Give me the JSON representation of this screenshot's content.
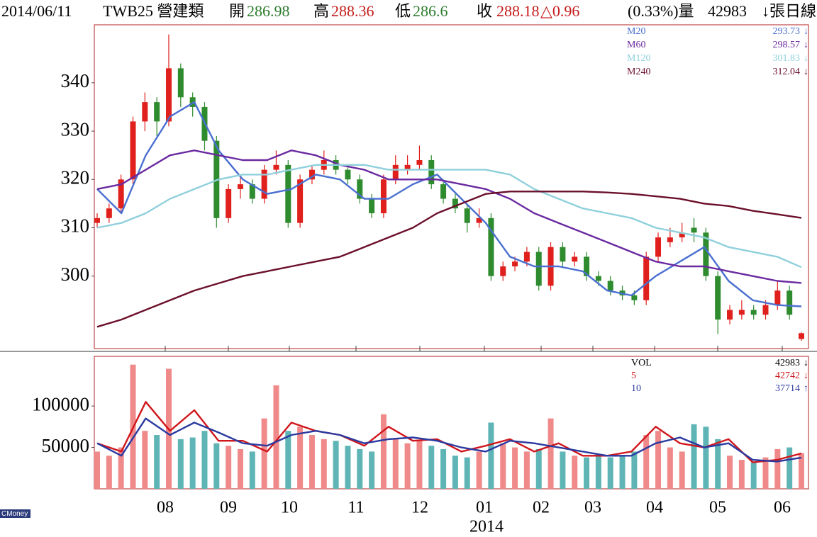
{
  "header": {
    "date": "2014/06/11",
    "code": "TWB25 營建類",
    "open_label": "開",
    "open": 286.98,
    "high_label": "高",
    "high": 288.36,
    "low_label": "低",
    "low": 286.6,
    "close_label": "收",
    "close": 288.18,
    "change": "△0.96",
    "pct": "(0.33%)量",
    "volume": 42983,
    "tail": "↓張日線"
  },
  "watermark": "CMoney",
  "chart_data": [
    {
      "type": "candlestick",
      "ylim": [
        285,
        352
      ],
      "yticks": [
        300,
        310,
        320,
        330,
        340
      ],
      "up_color": "#e0201c",
      "down_color": "#2e8b2e",
      "candles": [
        [
          311,
          313,
          310,
          312
        ],
        [
          312,
          315,
          311,
          314
        ],
        [
          314,
          321,
          313,
          320
        ],
        [
          320,
          333,
          319,
          332
        ],
        [
          332,
          338,
          330,
          336
        ],
        [
          336,
          337,
          329,
          332
        ],
        [
          332,
          350,
          331,
          343
        ],
        [
          343,
          344,
          335,
          337
        ],
        [
          337,
          338,
          333,
          335
        ],
        [
          335,
          336,
          326,
          328
        ],
        [
          328,
          329,
          310,
          312
        ],
        [
          312,
          319,
          311,
          318
        ],
        [
          318,
          321,
          316,
          319
        ],
        [
          319,
          320,
          315,
          316
        ],
        [
          316,
          323,
          315,
          322
        ],
        [
          322,
          326,
          321,
          323
        ],
        [
          323,
          324,
          310,
          311
        ],
        [
          311,
          321,
          310,
          320
        ],
        [
          320,
          323,
          319,
          322
        ],
        [
          322,
          326,
          321,
          324
        ],
        [
          324,
          325,
          321,
          322
        ],
        [
          322,
          323,
          319,
          320
        ],
        [
          320,
          321,
          315,
          316
        ],
        [
          316,
          317,
          312,
          313
        ],
        [
          313,
          321,
          312,
          320
        ],
        [
          320,
          325,
          319,
          323
        ],
        [
          322,
          325,
          321,
          323
        ],
        [
          323,
          327,
          322,
          324
        ],
        [
          324,
          325,
          318,
          319
        ],
        [
          319,
          320,
          315,
          316
        ],
        [
          316,
          317,
          313,
          314
        ],
        [
          314,
          315,
          309,
          311
        ],
        [
          311,
          314,
          310,
          312
        ],
        [
          312,
          313,
          299,
          300
        ],
        [
          300,
          303,
          299,
          302
        ],
        [
          302,
          304,
          301,
          303
        ],
        [
          303,
          306,
          302,
          305
        ],
        [
          305,
          306,
          297,
          298
        ],
        [
          298,
          307,
          297,
          306
        ],
        [
          306,
          307,
          302,
          303
        ],
        [
          303,
          305,
          302,
          304
        ],
        [
          304,
          305,
          299,
          300
        ],
        [
          300,
          301,
          298,
          299
        ],
        [
          299,
          300,
          296,
          297
        ],
        [
          297,
          298,
          295,
          296
        ],
        [
          296,
          297,
          294,
          295
        ],
        [
          295,
          305,
          294,
          304
        ],
        [
          304,
          309,
          303,
          308
        ],
        [
          307,
          310,
          306,
          308
        ],
        [
          308,
          311,
          307,
          309
        ],
        [
          310,
          312,
          307,
          309
        ],
        [
          309,
          310,
          299,
          300
        ],
        [
          300,
          301,
          288,
          291
        ],
        [
          291,
          294,
          290,
          293
        ],
        [
          292,
          295,
          291,
          293
        ],
        [
          293,
          294,
          291,
          292
        ],
        [
          292,
          295,
          291,
          294
        ],
        [
          294,
          299,
          293,
          297
        ],
        [
          297,
          298,
          291,
          292
        ],
        [
          286.98,
          288.36,
          286.6,
          288.18
        ]
      ],
      "series": [
        {
          "name": "M20",
          "color": "#4a6fd0",
          "trend": "↓",
          "values": [
            318,
            313,
            325,
            333,
            336,
            326,
            320,
            317,
            318,
            321,
            320,
            316,
            316,
            319,
            321,
            316,
            311,
            304,
            302,
            302,
            301,
            297,
            296,
            300,
            303,
            306,
            299,
            295,
            294,
            293.73
          ]
        },
        {
          "name": "M60",
          "color": "#6a2aa0",
          "trend": "↓",
          "values": [
            318,
            319,
            322,
            325,
            326,
            325,
            324,
            324,
            326,
            325,
            323,
            322,
            320,
            320,
            320,
            319,
            318,
            316,
            313,
            311,
            309,
            307,
            305,
            303,
            302,
            302,
            301,
            300,
            299,
            298.57
          ]
        },
        {
          "name": "M120",
          "color": "#8fd0dc",
          "trend": "↓",
          "values": [
            310,
            311,
            313,
            316,
            318,
            320,
            321,
            321,
            322,
            323,
            323,
            323,
            322,
            322,
            322,
            322,
            322,
            321,
            318,
            316,
            314,
            313,
            312,
            310,
            309,
            308,
            306,
            305,
            304,
            301.83
          ]
        },
        {
          "name": "M240",
          "color": "#6b0f2a",
          "trend": "↓",
          "values": [
            289.5,
            291,
            293,
            295,
            297,
            298.5,
            300,
            301,
            302,
            303,
            304,
            306,
            308,
            310,
            313,
            315,
            317,
            317.5,
            317.5,
            317.5,
            317.5,
            317.3,
            317,
            316.5,
            316,
            315,
            314.5,
            313.5,
            312.8,
            312.04
          ]
        }
      ]
    },
    {
      "type": "bar",
      "ylim": [
        0,
        160000
      ],
      "yticks": [
        50000,
        100000
      ],
      "up_color": "#f08a8a",
      "down_color": "#5fb5b5",
      "vol_name": "VOL",
      "vol_trend": "↓",
      "values": [
        45000,
        40000,
        50000,
        150000,
        70000,
        65000,
        145000,
        60000,
        62000,
        70000,
        55000,
        52000,
        48000,
        45000,
        85000,
        125000,
        70000,
        75000,
        65000,
        60000,
        58000,
        52000,
        48000,
        45000,
        90000,
        60000,
        55000,
        58000,
        52000,
        48000,
        40000,
        38000,
        45000,
        80000,
        55000,
        50000,
        45000,
        48000,
        85000,
        45000,
        40000,
        38000,
        42000,
        38000,
        40000,
        45000,
        65000,
        70000,
        50000,
        45000,
        78000,
        75000,
        60000,
        40000,
        35000,
        32000,
        38000,
        48000,
        50000,
        42983
      ],
      "series": [
        {
          "name": "5",
          "color": "#d0161c",
          "trend": "↓",
          "values": [
            55000,
            45000,
            105000,
            70000,
            95000,
            58000,
            58000,
            45000,
            80000,
            70000,
            65000,
            52000,
            75000,
            58000,
            60000,
            45000,
            52000,
            60000,
            45000,
            55000,
            40000,
            40000,
            45000,
            75000,
            55000,
            50000,
            60000,
            32000,
            35000,
            42742
          ]
        },
        {
          "name": "10",
          "color": "#2a3aa0",
          "trend": "↑",
          "values": [
            55000,
            40000,
            85000,
            65000,
            80000,
            68000,
            55000,
            52000,
            65000,
            70000,
            65000,
            55000,
            60000,
            62000,
            58000,
            50000,
            45000,
            58000,
            55000,
            50000,
            45000,
            40000,
            40000,
            55000,
            62000,
            50000,
            55000,
            35000,
            33000,
            37714
          ]
        }
      ],
      "x_labels": [
        "08",
        "09",
        "10",
        "11",
        "12",
        "01",
        "02",
        "03",
        "04",
        "05",
        "06"
      ],
      "year": "2014"
    }
  ]
}
